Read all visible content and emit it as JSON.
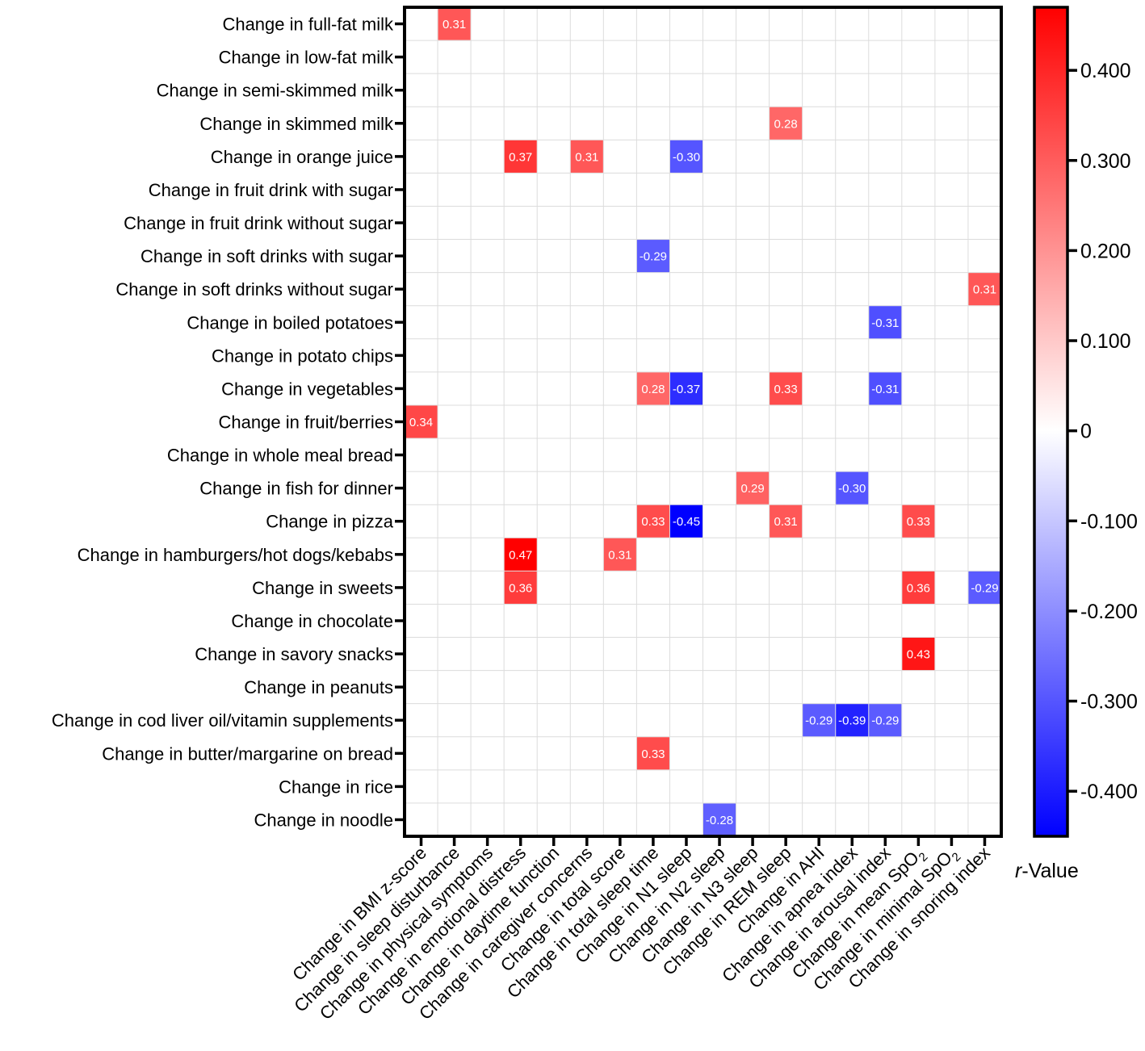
{
  "chart_data": {
    "type": "heatmap",
    "title": "",
    "legend_title": "r-Value",
    "legend_title_italic_part": "r",
    "legend_title_rest": "-Value",
    "color_scale": {
      "min": -0.45,
      "max": 0.47,
      "low_color": "#0000ff",
      "mid_color": "#ffffff",
      "high_color": "#ff0000"
    },
    "colorbar_ticks": [
      {
        "value": 0.4,
        "label": "0.400"
      },
      {
        "value": 0.3,
        "label": "0.300"
      },
      {
        "value": 0.2,
        "label": "0.200"
      },
      {
        "value": 0.1,
        "label": "0.100"
      },
      {
        "value": 0.0,
        "label": "0"
      },
      {
        "value": -0.1,
        "label": "-0.100"
      },
      {
        "value": -0.2,
        "label": "-0.200"
      },
      {
        "value": -0.3,
        "label": "-0.300"
      },
      {
        "value": -0.4,
        "label": "-0.400"
      }
    ],
    "rows": [
      "Change in full-fat milk",
      "Change in low-fat milk",
      "Change in semi-skimmed milk",
      "Change in skimmed milk",
      "Change in orange juice",
      "Change in fruit drink with sugar",
      "Change in fruit drink without sugar",
      "Change in soft drinks with sugar",
      "Change in soft drinks without sugar",
      "Change in boiled potatoes",
      "Change in potato chips",
      "Change in vegetables",
      "Change in fruit/berries",
      "Change in whole meal bread",
      "Change in fish for dinner",
      "Change in pizza",
      "Change in hamburgers/hot dogs/kebabs",
      "Change in sweets",
      "Change in chocolate",
      "Change in savory snacks",
      "Change in peanuts",
      "Change in  cod liver oil/vitamin supplements",
      "Change in butter/margarine on bread",
      "Change in rice",
      "Change in noodle"
    ],
    "columns": [
      {
        "label": "Change in BMI z-score"
      },
      {
        "label": "Change in sleep disturbance"
      },
      {
        "label": "Change in physical symptoms"
      },
      {
        "label": "Change in emotional distress"
      },
      {
        "label": "Change in daytime function"
      },
      {
        "label": "Change in caregiver concerns"
      },
      {
        "label": "Change in total score"
      },
      {
        "label": "Change in total sleep time"
      },
      {
        "label": "Change in N1 sleep"
      },
      {
        "label": "Change in N2 sleep"
      },
      {
        "label": "Change in N3 sleep"
      },
      {
        "label": "Change in REM sleep"
      },
      {
        "label": "Change in AHI"
      },
      {
        "label": "Change in apnea index"
      },
      {
        "label": "Change in arousal index"
      },
      {
        "label": "Change in mean SpO",
        "subscript": "2"
      },
      {
        "label": "Change in minimal SpO",
        "subscript": "2"
      },
      {
        "label": "Change in snoring index"
      }
    ],
    "cells": [
      {
        "row": 0,
        "col": 1,
        "value": 0.31,
        "label": "0.31"
      },
      {
        "row": 3,
        "col": 11,
        "value": 0.28,
        "label": "0.28"
      },
      {
        "row": 4,
        "col": 3,
        "value": 0.37,
        "label": "0.37"
      },
      {
        "row": 4,
        "col": 5,
        "value": 0.31,
        "label": "0.31"
      },
      {
        "row": 4,
        "col": 8,
        "value": -0.3,
        "label": "-0.30"
      },
      {
        "row": 7,
        "col": 7,
        "value": -0.29,
        "label": "-0.29"
      },
      {
        "row": 8,
        "col": 17,
        "value": 0.31,
        "label": "0.31"
      },
      {
        "row": 9,
        "col": 14,
        "value": -0.31,
        "label": "-0.31"
      },
      {
        "row": 11,
        "col": 7,
        "value": 0.28,
        "label": "0.28"
      },
      {
        "row": 11,
        "col": 8,
        "value": -0.37,
        "label": "-0.37"
      },
      {
        "row": 11,
        "col": 11,
        "value": 0.33,
        "label": "0.33"
      },
      {
        "row": 11,
        "col": 14,
        "value": -0.31,
        "label": "-0.31"
      },
      {
        "row": 12,
        "col": 0,
        "value": 0.34,
        "label": "0.34"
      },
      {
        "row": 14,
        "col": 10,
        "value": 0.29,
        "label": "0.29"
      },
      {
        "row": 14,
        "col": 13,
        "value": -0.3,
        "label": "-0.30"
      },
      {
        "row": 15,
        "col": 7,
        "value": 0.33,
        "label": "0.33"
      },
      {
        "row": 15,
        "col": 8,
        "value": -0.45,
        "label": "-0.45"
      },
      {
        "row": 15,
        "col": 11,
        "value": 0.31,
        "label": "0.31"
      },
      {
        "row": 15,
        "col": 15,
        "value": 0.33,
        "label": "0.33"
      },
      {
        "row": 16,
        "col": 3,
        "value": 0.47,
        "label": "0.47"
      },
      {
        "row": 16,
        "col": 6,
        "value": 0.31,
        "label": "0.31"
      },
      {
        "row": 17,
        "col": 3,
        "value": 0.36,
        "label": "0.36"
      },
      {
        "row": 17,
        "col": 15,
        "value": 0.36,
        "label": "0.36"
      },
      {
        "row": 17,
        "col": 17,
        "value": -0.29,
        "label": "-0.29"
      },
      {
        "row": 19,
        "col": 15,
        "value": 0.43,
        "label": "0.43"
      },
      {
        "row": 21,
        "col": 12,
        "value": -0.29,
        "label": "-0.29"
      },
      {
        "row": 21,
        "col": 13,
        "value": -0.39,
        "label": "-0.39"
      },
      {
        "row": 21,
        "col": 14,
        "value": -0.29,
        "label": "-0.29"
      },
      {
        "row": 22,
        "col": 7,
        "value": 0.33,
        "label": "0.33"
      },
      {
        "row": 24,
        "col": 9,
        "value": -0.28,
        "label": "-0.28"
      }
    ]
  }
}
